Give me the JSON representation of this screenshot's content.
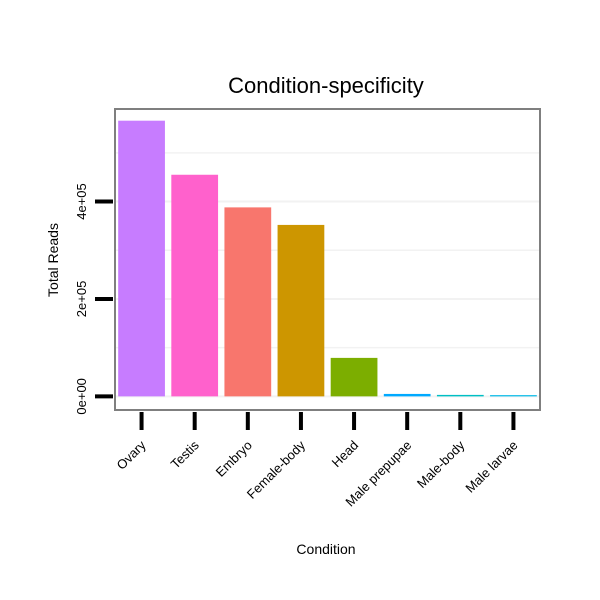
{
  "chart_data": {
    "type": "bar",
    "title": "Condition-specificity",
    "xlabel": "Condition",
    "ylabel": "Total Reads",
    "ylim": [
      -28000,
      590000
    ],
    "grid": true,
    "legend": "none",
    "categories": [
      "Ovary",
      "Testis",
      "Embryo",
      "Female-body",
      "Head",
      "Male prepupae",
      "Male-body",
      "Male larvae"
    ],
    "values": [
      566000,
      455000,
      388000,
      352000,
      79000,
      5000,
      3000,
      500
    ],
    "colors": [
      "#C77CFF",
      "#FF61CC",
      "#F8766D",
      "#CD9600",
      "#7CAE00",
      "#00A9FF",
      "#00BFC4",
      "#00B8E7"
    ],
    "yticks": [
      0,
      200000,
      400000
    ],
    "ytick_labels": [
      "0e+00",
      "2e+05",
      "4e+05"
    ]
  }
}
